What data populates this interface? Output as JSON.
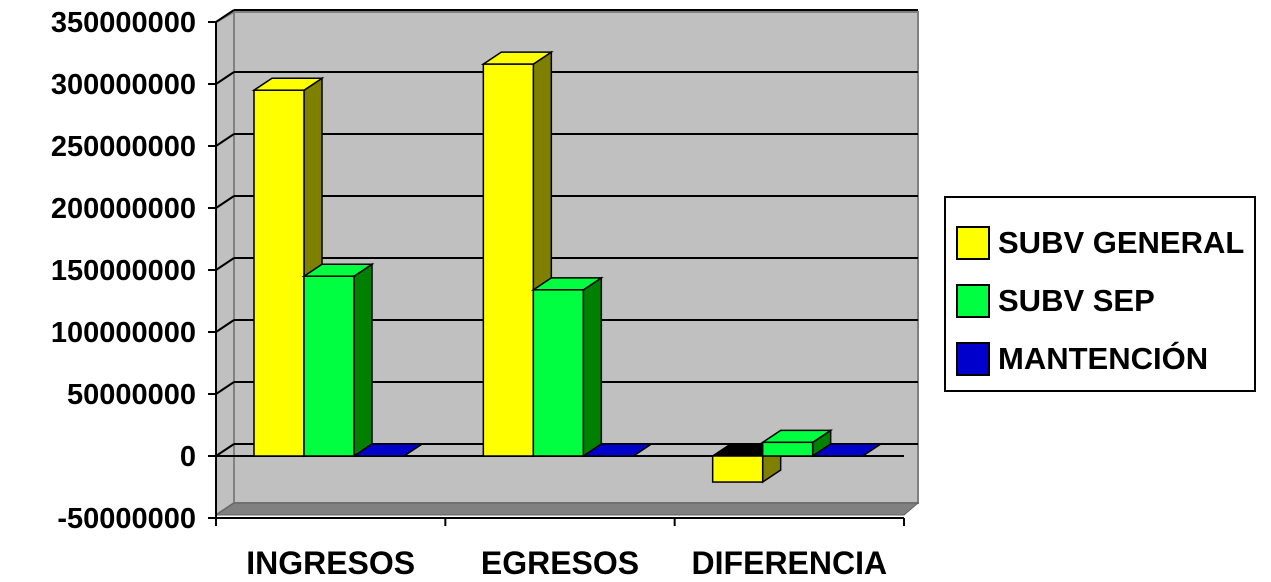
{
  "chart_data": {
    "type": "bar",
    "categories": [
      "INGRESOS",
      "EGRESOS",
      "DIFERENCIA"
    ],
    "series": [
      {
        "name": "SUBV GENERAL",
        "values": [
          295000000,
          316000000,
          -21000000
        ],
        "color": "#FFFF00",
        "side_color": "#808000"
      },
      {
        "name": "SUBV SEP",
        "values": [
          145000000,
          134000000,
          11000000
        ],
        "color": "#00FF40",
        "side_color": "#008000"
      },
      {
        "name": "MANTENCIÓN",
        "values": [
          0,
          0,
          0
        ],
        "color": "#0000CC",
        "side_color": "#000080"
      }
    ],
    "y_ticks": [
      "350000000",
      "300000000",
      "250000000",
      "200000000",
      "150000000",
      "100000000",
      "50000000",
      "0",
      "-50000000"
    ],
    "ylim": [
      -50000000,
      350000000
    ],
    "grid": true,
    "legend_position": "right",
    "plot_background": "#C0C0C0",
    "three_d": true
  }
}
